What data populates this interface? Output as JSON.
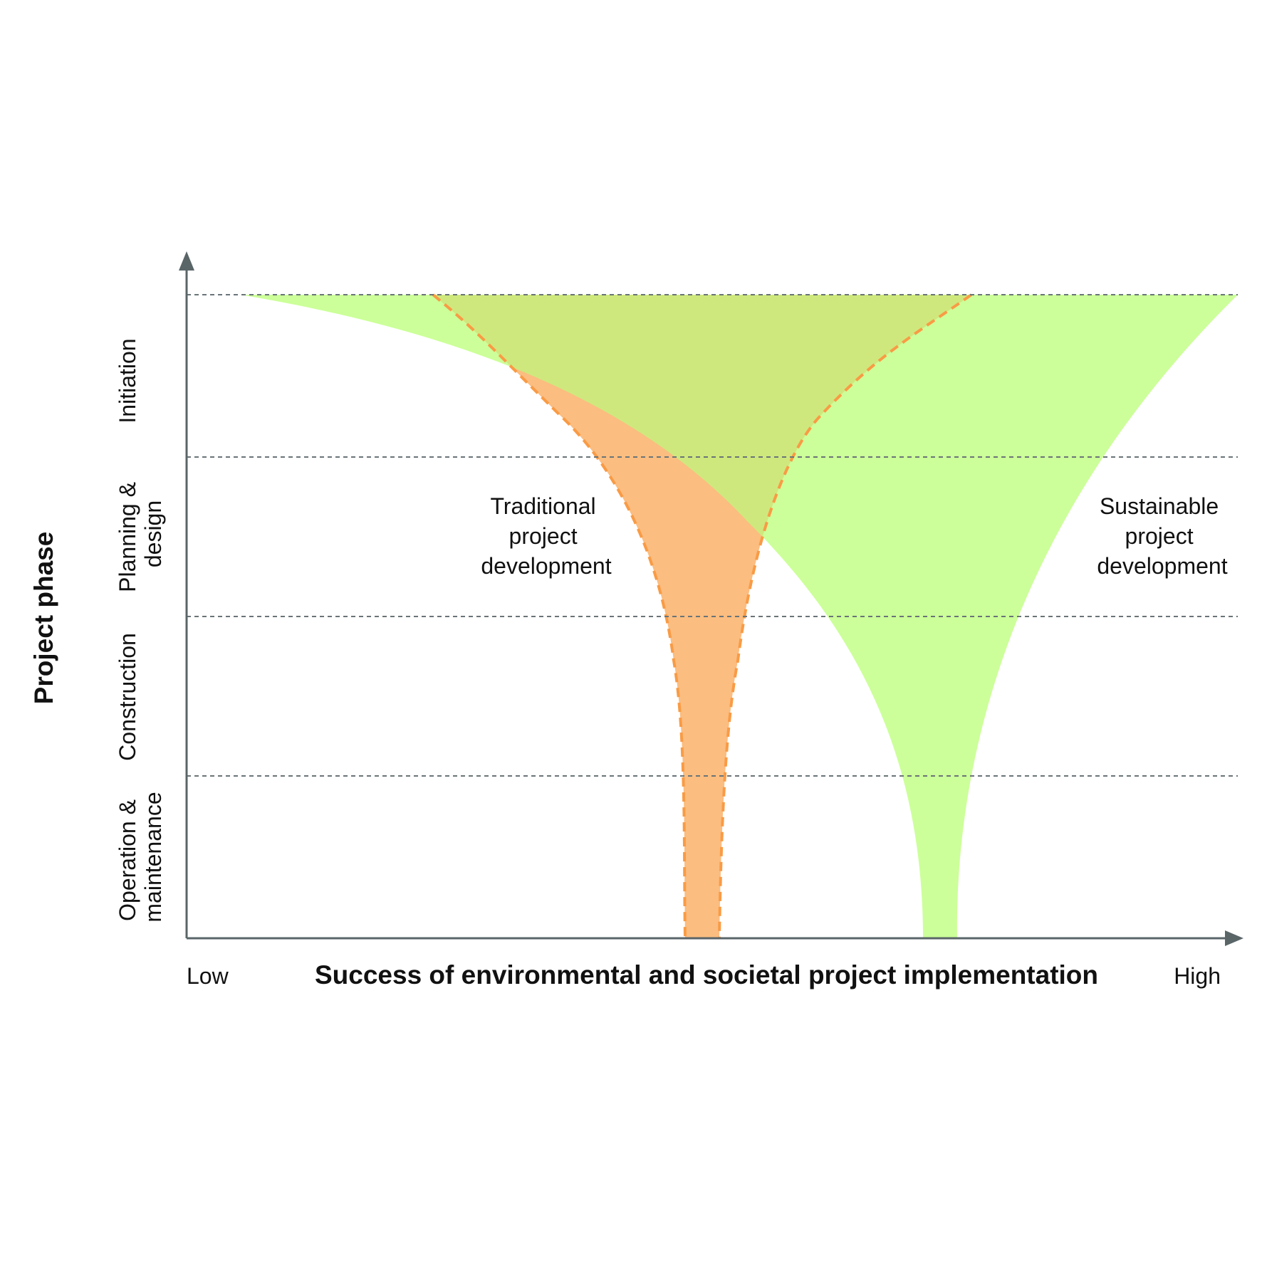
{
  "diagram": {
    "y_axis_title": "Project phase",
    "x_axis_title": "Success of environmental and societal project implementation",
    "x_low_label": "Low",
    "x_high_label": "High",
    "phases": [
      {
        "lines": [
          "Initiation"
        ]
      },
      {
        "lines": [
          "Planning &",
          "design"
        ]
      },
      {
        "lines": [
          "Construction"
        ]
      },
      {
        "lines": [
          "Operation &",
          "maintenance"
        ]
      }
    ],
    "series": [
      {
        "lines": [
          "Traditional",
          "project",
          "development"
        ],
        "color": "#f99b45",
        "fill": "#fbbd80",
        "edge": "dashed"
      },
      {
        "lines": [
          "Sustainable",
          "project",
          "development"
        ],
        "color": "#ccff99",
        "fill": "#ccff99",
        "edge": "none"
      }
    ],
    "overlap_color": "#cfe87d",
    "gridline_color": "#6a7478",
    "axis_color": "#5a6568"
  }
}
